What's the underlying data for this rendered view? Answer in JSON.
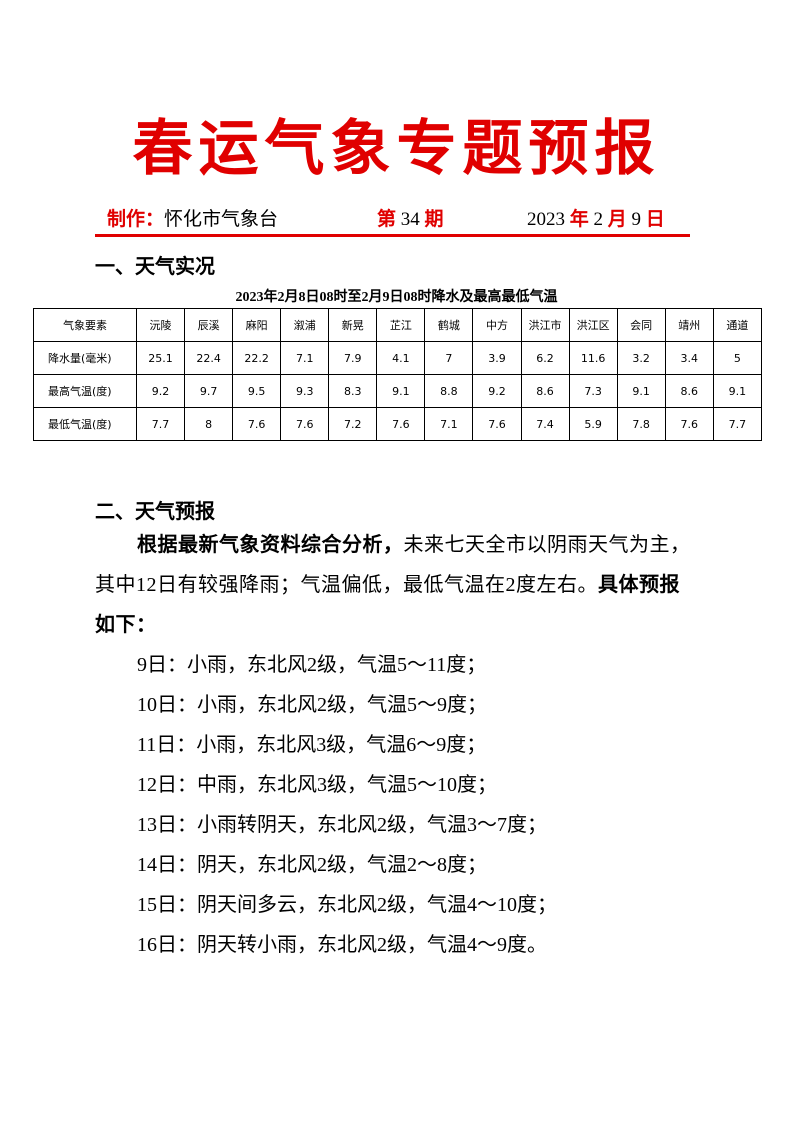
{
  "header": {
    "title": "春运气象专题预报",
    "producer_label": "制作：",
    "producer": "怀化市气象台",
    "issue": [
      "第",
      "34",
      "期"
    ],
    "date": [
      "2023",
      "年",
      "2",
      "月",
      "9",
      "日"
    ]
  },
  "section1": {
    "heading": "一、天气实况",
    "table": {
      "caption": "2023年2月8日08时至2月9日08时降水及最高最低气温",
      "header": [
        "气象要素",
        "沅陵",
        "辰溪",
        "麻阳",
        "溆浦",
        "新晃",
        "芷江",
        "鹤城",
        "中方",
        "洪江市",
        "洪江区",
        "会同",
        "靖州",
        "通道"
      ],
      "rows": [
        [
          "降水量(毫米)",
          25.1,
          22.4,
          22.2,
          7.1,
          7.9,
          4.1,
          7,
          3.9,
          6.2,
          11.6,
          3.2,
          3.4,
          5
        ],
        [
          "最高气温(度)",
          9.2,
          9.7,
          9.5,
          9.3,
          8.3,
          9.1,
          8.8,
          9.2,
          8.6,
          7.3,
          9.1,
          8.6,
          9.1
        ],
        [
          "最低气温(度)",
          7.7,
          8,
          7.6,
          7.6,
          7.2,
          7.6,
          7.1,
          7.6,
          7.4,
          5.9,
          7.8,
          7.6,
          7.7
        ]
      ]
    }
  },
  "section2": {
    "heading": "二、天气预报",
    "summary": [
      {
        "text": "根据最新气象资料综合分析，",
        "bold": true
      },
      {
        "text": "未来七天全市以阴雨天气为主，其中12日有较强降雨；气温偏低，最低气温在2度左右。",
        "bold": false
      },
      {
        "text": "具体预报如下：",
        "bold": true
      }
    ],
    "forecast": [
      "9日：小雨，东北风2级，气温5～11度；",
      "10日：小雨，东北风2级，气温5～9度；",
      "11日：小雨，东北风3级，气温6～9度；",
      "12日：中雨，东北风3级，气温5～10度；",
      "13日：小雨转阴天，东北风2级，气温3～7度；",
      "14日：阴天，东北风2级，气温2～8度；",
      "15日：阴天间多云，东北风2级，气温4～10度；",
      "16日：阴天转小雨，东北风2级，气温4～9度。"
    ]
  }
}
